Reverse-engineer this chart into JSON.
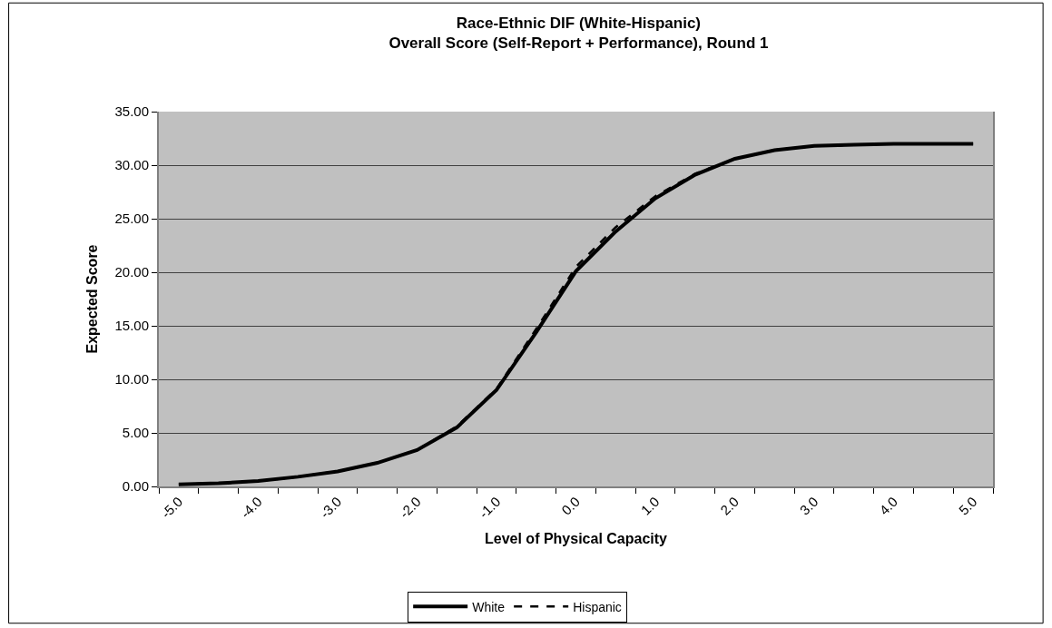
{
  "chart_data": {
    "type": "line",
    "title": "Race-Ethnic DIF (White-Hispanic)\nOverall Score (Self-Report + Performance), Round 1",
    "xlabel": "Level of Physical Capacity",
    "ylabel": "Expected Score",
    "categories": [
      "-5.0",
      null,
      "-4.0",
      null,
      "-3.0",
      null,
      "-2.0",
      null,
      "-1.0",
      null,
      "0.0",
      null,
      "1.0",
      null,
      "2.0",
      null,
      "3.0",
      null,
      "4.0",
      null,
      "5.0"
    ],
    "series": [
      {
        "name": "White",
        "color": "#000000",
        "line_style": "solid",
        "values": [
          0.2,
          0.3,
          0.5,
          0.9,
          1.4,
          2.2,
          3.4,
          5.5,
          9.0,
          14.4,
          20.1,
          23.8,
          26.9,
          29.1,
          30.6,
          31.4,
          31.8,
          31.9,
          32.0,
          32.0,
          32.0
        ]
      },
      {
        "name": "Hispanic",
        "color": "#000000",
        "line_style": "dashed",
        "values": [
          0.2,
          0.3,
          0.5,
          0.9,
          1.4,
          2.2,
          3.4,
          5.6,
          9.1,
          14.7,
          20.5,
          24.2,
          27.1,
          29.2,
          30.6,
          31.4,
          31.8,
          31.9,
          32.0,
          32.0,
          32.0
        ]
      }
    ],
    "ylim": [
      0,
      35
    ],
    "yticks": [
      {
        "value": 0,
        "label": "0.00"
      },
      {
        "value": 5,
        "label": "5.00"
      },
      {
        "value": 10,
        "label": "10.00"
      },
      {
        "value": 15,
        "label": "15.00"
      },
      {
        "value": 20,
        "label": "20.00"
      },
      {
        "value": 25,
        "label": "25.00"
      },
      {
        "value": 30,
        "label": "30.00"
      },
      {
        "value": 35,
        "label": "35.00"
      }
    ],
    "grid": "y",
    "legend": "bottom",
    "marker": "none"
  }
}
